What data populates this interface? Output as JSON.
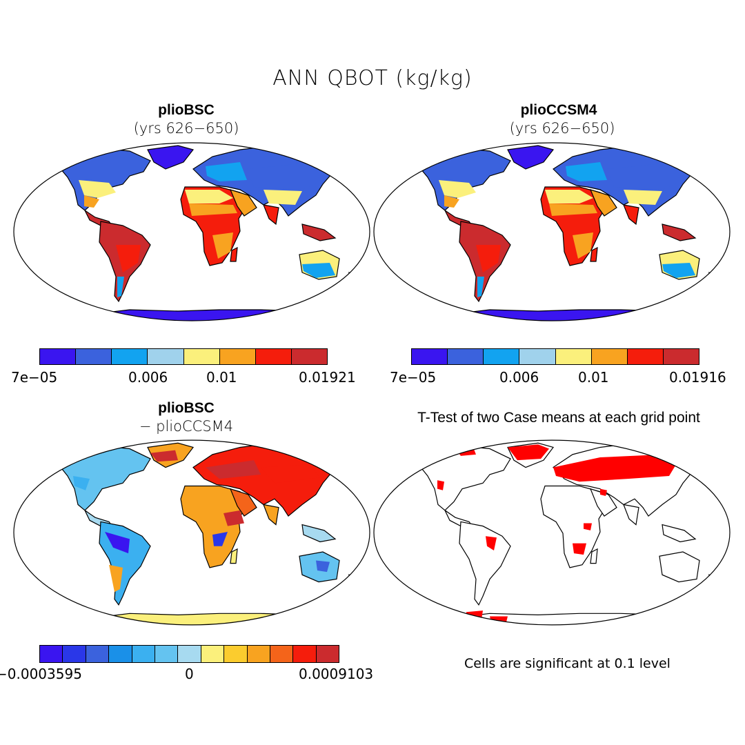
{
  "figure": {
    "title": "ANN QBOT (kg/kg)"
  },
  "panels": {
    "top_left": {
      "title": "plioBSC",
      "subtitle": "(yrs 626−650)"
    },
    "top_right": {
      "title": "plioCCSM4",
      "subtitle": "(yrs 626−650)"
    },
    "bottom_left": {
      "title": "plioBSC",
      "subtitle": "− plioCCSM4"
    },
    "bottom_right": {
      "title": "T-Test of two Case means at each grid point",
      "note": "Cells are significant at 0.1 level"
    }
  },
  "colorbars": {
    "top_left": {
      "min": "7e−05",
      "t1": "0.006",
      "t2": "0.01",
      "max": "0.01921",
      "colors": [
        "#3a15f0",
        "#3b62dd",
        "#12a3f0",
        "#a0d2ec",
        "#fbf07c",
        "#f8a320",
        "#f51d0c",
        "#cb2b2e"
      ]
    },
    "top_right": {
      "min": "7e−05",
      "t1": "0.006",
      "t2": "0.01",
      "max": "0.01916",
      "colors": [
        "#3a15f0",
        "#3b62dd",
        "#12a3f0",
        "#a0d2ec",
        "#fbf07c",
        "#f8a320",
        "#f51d0c",
        "#cb2b2e"
      ]
    },
    "bottom_left": {
      "min": "−0.0003595",
      "mid": "0",
      "max": "0.0009103",
      "colors": [
        "#3a15f0",
        "#2a37e8",
        "#3b62dd",
        "#1a90e8",
        "#3bb0f0",
        "#64c3f0",
        "#a7daf0",
        "#fbf07c",
        "#fbcc2e",
        "#f8a320",
        "#f4641a",
        "#f51d0c",
        "#cb2b2e"
      ]
    }
  },
  "map_colors": {
    "ocean": "#ffffff",
    "ice": "#3a15f0",
    "sig": "#ff0000"
  }
}
